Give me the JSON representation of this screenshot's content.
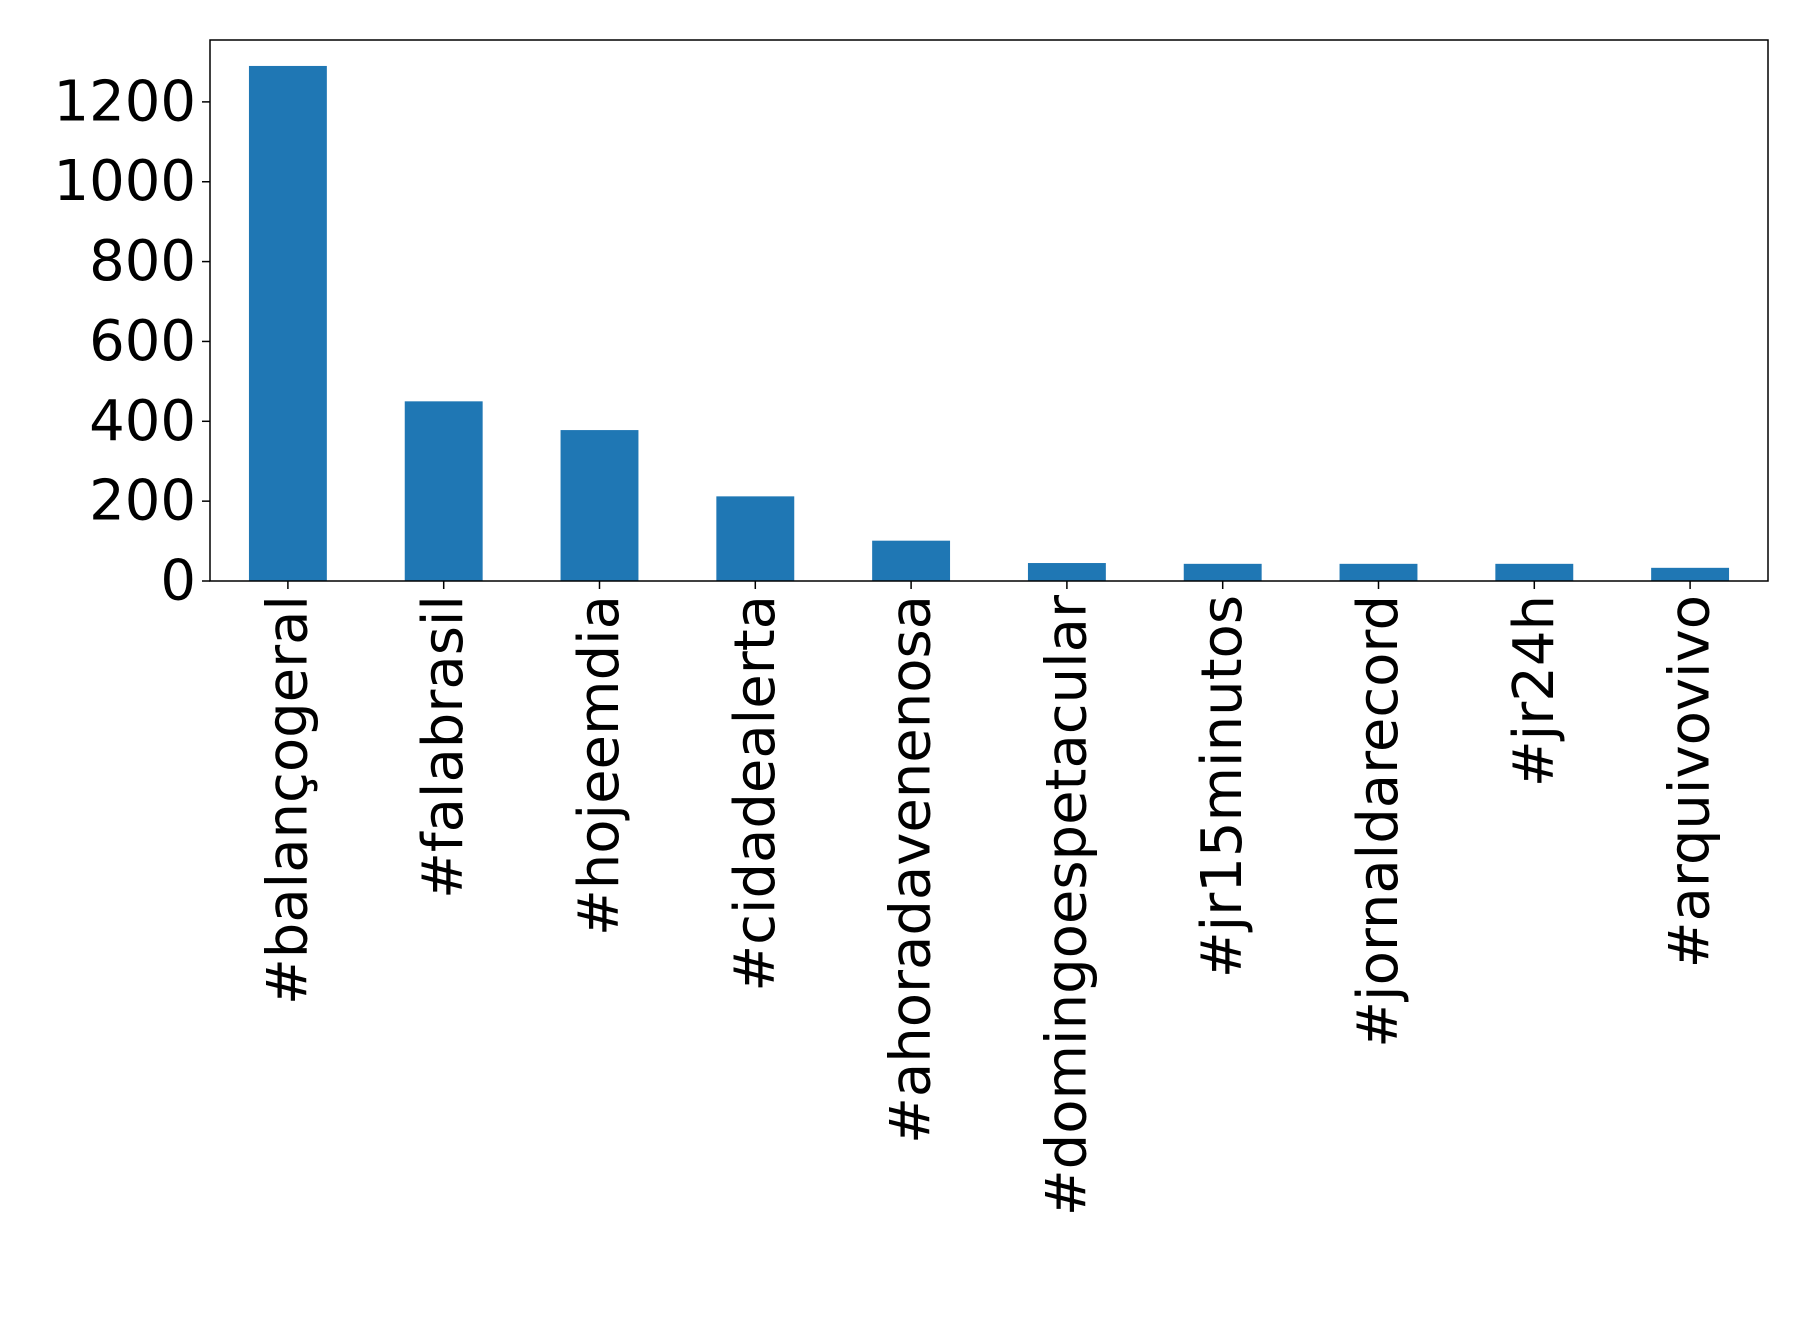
{
  "chart_data": {
    "type": "bar",
    "categories": [
      "#balançogeral",
      "#falabrasil",
      "#hojeemdia",
      "#cidadealerta",
      "#ahoradavenenosa",
      "#domingoespetacular",
      "#jr15minutos",
      "#jornaldarecord",
      "#jr24h",
      "#arquivovivo"
    ],
    "values": [
      1290,
      450,
      378,
      212,
      101,
      45,
      43,
      43,
      43,
      33
    ],
    "title": "",
    "xlabel": "",
    "ylabel": "",
    "ylim": [
      0,
      1355
    ],
    "yticks": [
      0,
      200,
      400,
      600,
      800,
      1000,
      1200
    ],
    "grid": false,
    "bar_color": "#1f77b4"
  }
}
